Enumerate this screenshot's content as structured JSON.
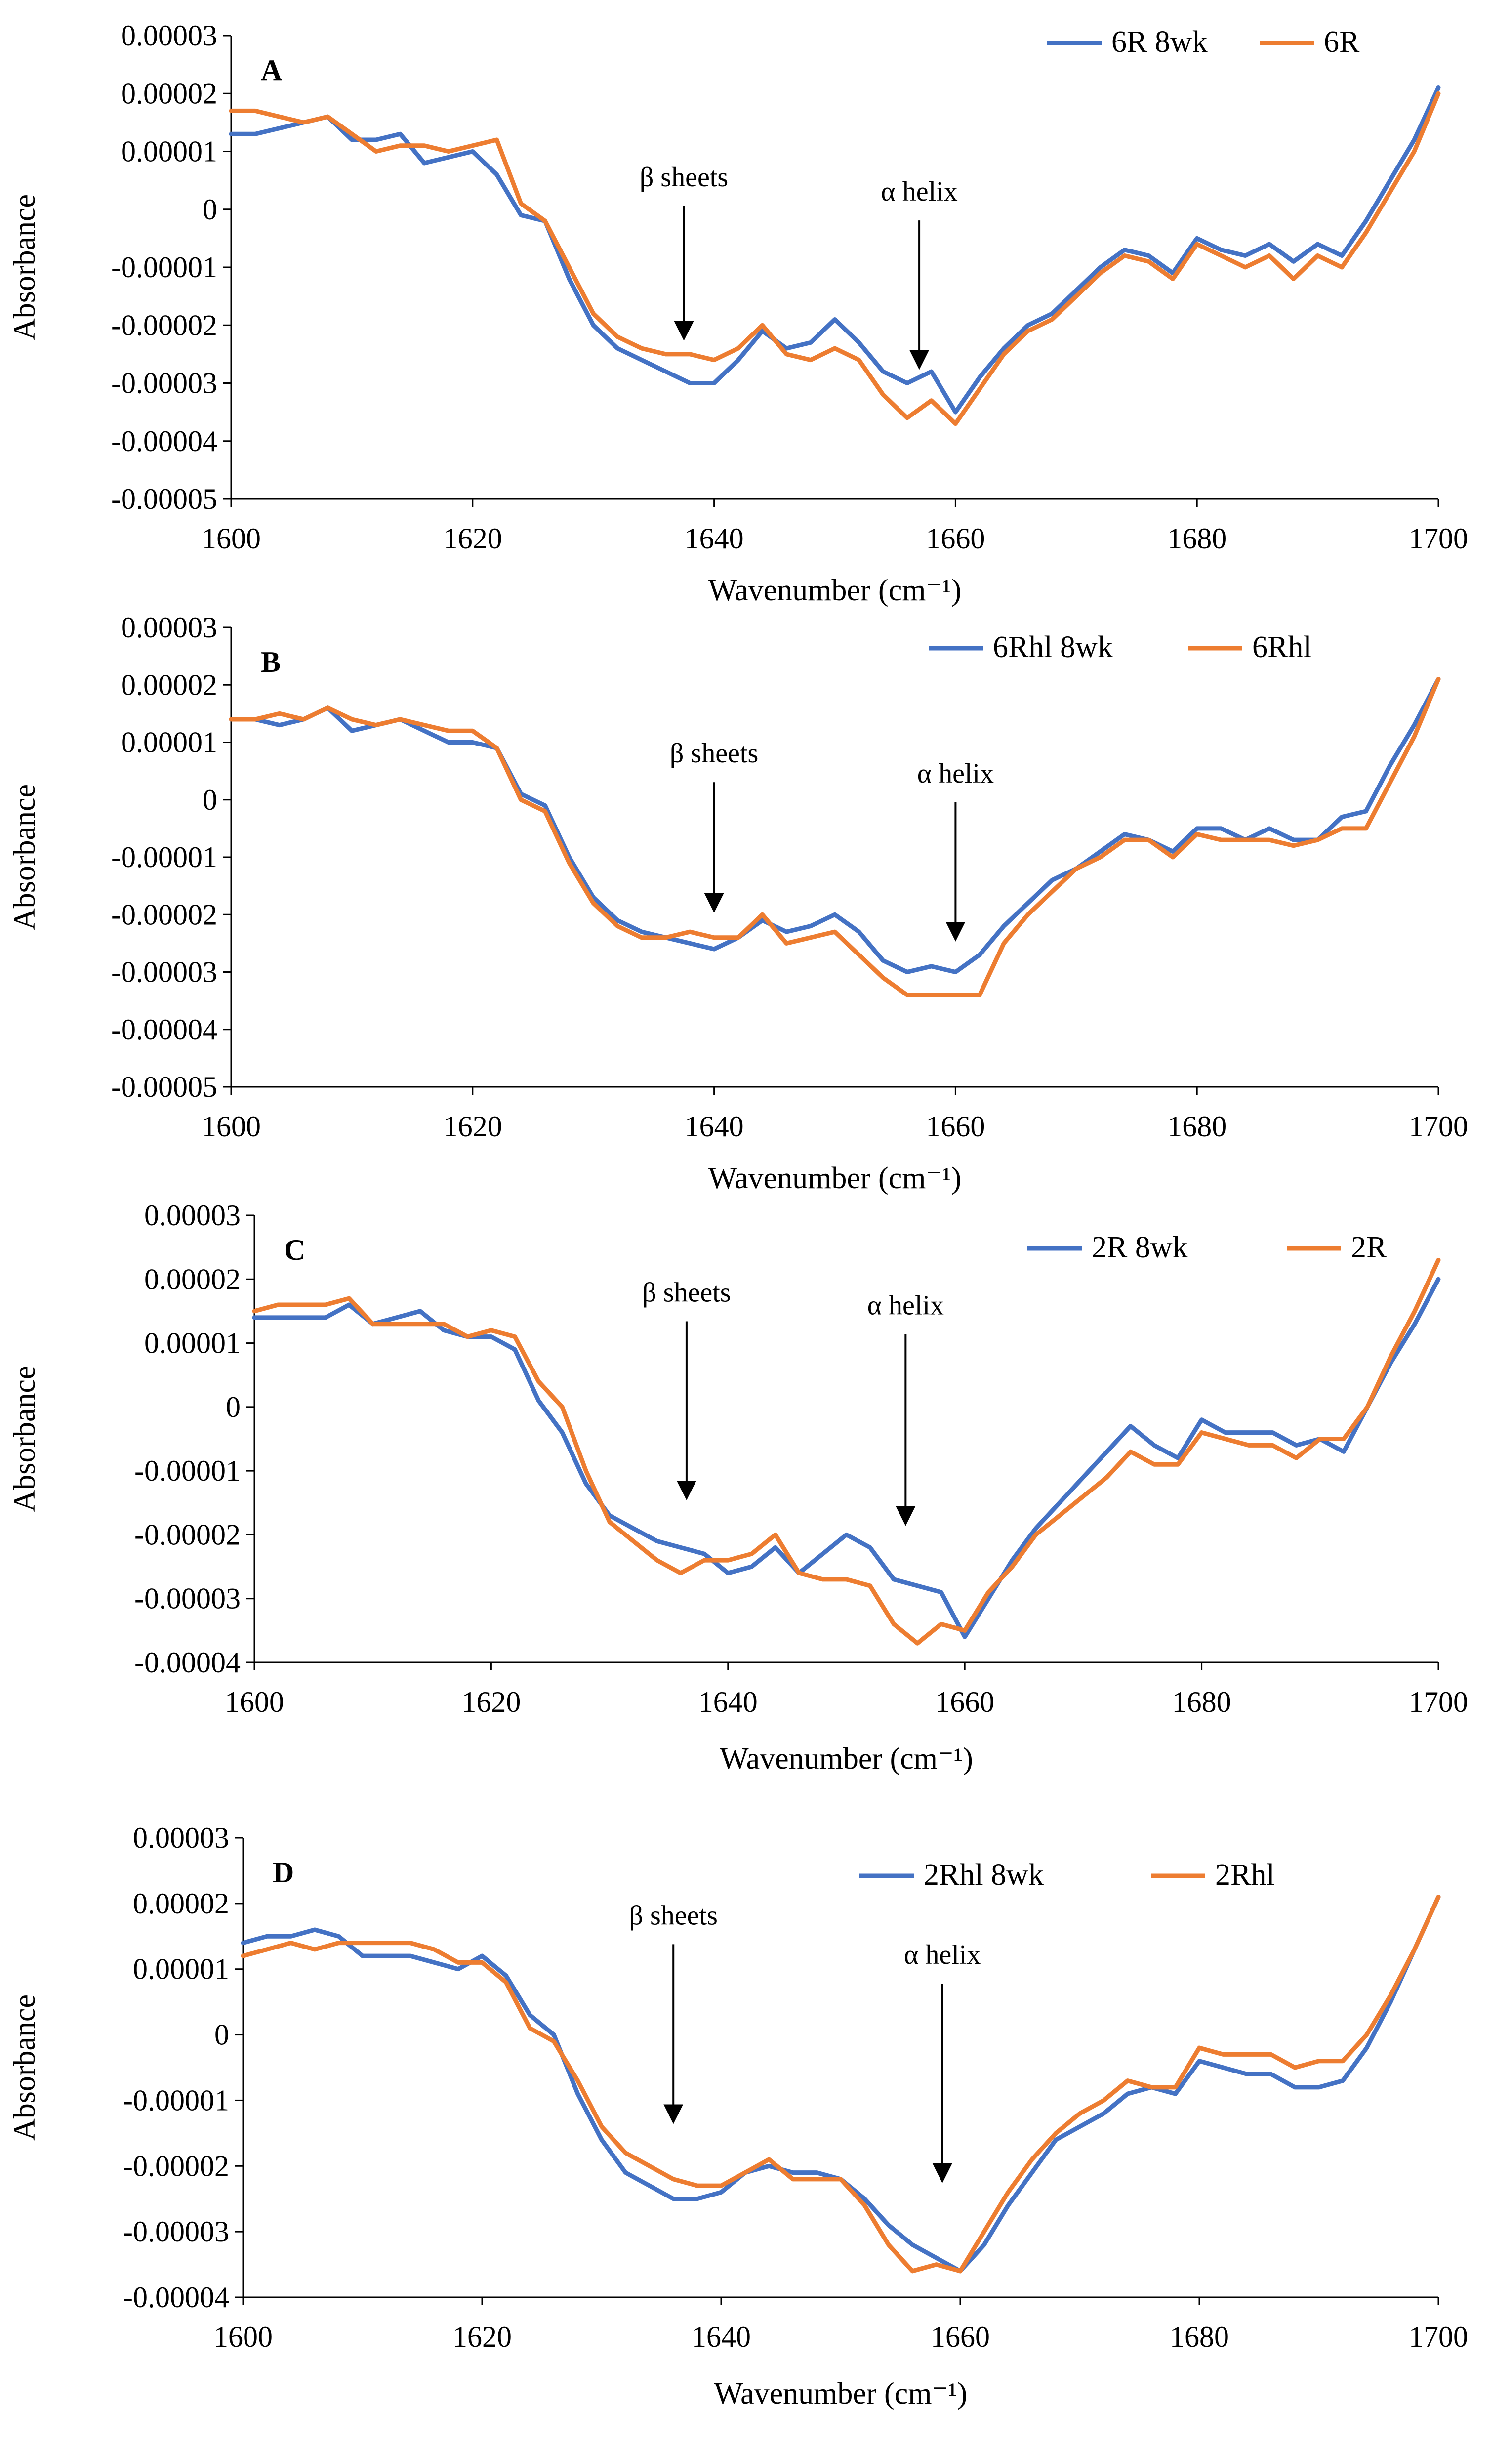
{
  "colors": {
    "series_8wk": "#4472C4",
    "series_base": "#ED7D31",
    "axis": "#000000"
  },
  "chart_data": [
    {
      "type": "line",
      "panel_label": "A",
      "xlabel": "Wavenumber (cm⁻¹)",
      "ylabel": "Absorbance",
      "xlim": [
        1600,
        1700
      ],
      "ylim": [
        -5e-05,
        3e-05
      ],
      "x_ticks": [
        "1600",
        "1620",
        "1640",
        "1660",
        "1680",
        "1700"
      ],
      "y_ticks": [
        "0.00003",
        "0.00002",
        "0.00001",
        "0",
        "-0.00001",
        "-0.00002",
        "-0.00003",
        "-0.00004",
        "-0.00005"
      ],
      "x": [
        1600,
        1602,
        1604,
        1606,
        1608,
        1610,
        1612,
        1614,
        1616,
        1618,
        1620,
        1622,
        1624,
        1626,
        1628,
        1630,
        1632,
        1634,
        1636,
        1638,
        1640,
        1642,
        1644,
        1646,
        1648,
        1650,
        1652,
        1654,
        1656,
        1658,
        1660,
        1662,
        1664,
        1666,
        1668,
        1670,
        1672,
        1674,
        1676,
        1678,
        1680,
        1682,
        1684,
        1686,
        1688,
        1690,
        1692,
        1694,
        1696,
        1698,
        1700
      ],
      "series": [
        {
          "name": "6R 8wk",
          "values": [
            1.3e-05,
            1.3e-05,
            1.4e-05,
            1.5e-05,
            1.6e-05,
            1.2e-05,
            1.2e-05,
            1.3e-05,
            8e-06,
            9e-06,
            1e-05,
            6e-06,
            -1e-06,
            -2e-06,
            -1.2e-05,
            -2e-05,
            -2.4e-05,
            -2.6e-05,
            -2.8e-05,
            -3e-05,
            -3e-05,
            -2.6e-05,
            -2.1e-05,
            -2.4e-05,
            -2.3e-05,
            -1.9e-05,
            -2.3e-05,
            -2.8e-05,
            -3e-05,
            -2.8e-05,
            -3.5e-05,
            -2.9e-05,
            -2.4e-05,
            -2e-05,
            -1.8e-05,
            -1.4e-05,
            -1e-05,
            -7e-06,
            -8e-06,
            -1.1e-05,
            -5e-06,
            -7e-06,
            -8e-06,
            -6e-06,
            -9e-06,
            -6e-06,
            -8e-06,
            -2e-06,
            5e-06,
            1.2e-05,
            2.1e-05
          ]
        },
        {
          "name": "6R",
          "values": [
            1.7e-05,
            1.7e-05,
            1.6e-05,
            1.5e-05,
            1.6e-05,
            1.3e-05,
            1e-05,
            1.1e-05,
            1.1e-05,
            1e-05,
            1.1e-05,
            1.2e-05,
            1e-06,
            -2e-06,
            -1e-05,
            -1.8e-05,
            -2.2e-05,
            -2.4e-05,
            -2.5e-05,
            -2.5e-05,
            -2.6e-05,
            -2.4e-05,
            -2e-05,
            -2.5e-05,
            -2.6e-05,
            -2.4e-05,
            -2.6e-05,
            -3.2e-05,
            -3.6e-05,
            -3.3e-05,
            -3.7e-05,
            -3.1e-05,
            -2.5e-05,
            -2.1e-05,
            -1.9e-05,
            -1.5e-05,
            -1.1e-05,
            -8e-06,
            -9e-06,
            -1.2e-05,
            -6e-06,
            -8e-06,
            -1e-05,
            -8e-06,
            -1.2e-05,
            -8e-06,
            -1e-05,
            -4e-06,
            3e-06,
            1e-05,
            2e-05
          ]
        }
      ],
      "annotations": [
        {
          "label": "β sheets",
          "x": 1637.5,
          "y_tip": -2.2e-05,
          "y_text": 4e-06
        },
        {
          "label": "α helix",
          "x": 1657,
          "y_tip": -2.7e-05,
          "y_text": 1.5e-06
        }
      ]
    },
    {
      "type": "line",
      "panel_label": "B",
      "xlabel": "Wavenumber (cm⁻¹)",
      "ylabel": "Absorbance",
      "xlim": [
        1600,
        1700
      ],
      "ylim": [
        -5e-05,
        3e-05
      ],
      "x_ticks": [
        "1600",
        "1620",
        "1640",
        "1660",
        "1680",
        "1700"
      ],
      "y_ticks": [
        "0.00003",
        "0.00002",
        "0.00001",
        "0",
        "-0.00001",
        "-0.00002",
        "-0.00003",
        "-0.00004",
        "-0.00005"
      ],
      "x": [
        1600,
        1602,
        1604,
        1606,
        1608,
        1610,
        1612,
        1614,
        1616,
        1618,
        1620,
        1622,
        1624,
        1626,
        1628,
        1630,
        1632,
        1634,
        1636,
        1638,
        1640,
        1642,
        1644,
        1646,
        1648,
        1650,
        1652,
        1654,
        1656,
        1658,
        1660,
        1662,
        1664,
        1666,
        1668,
        1670,
        1672,
        1674,
        1676,
        1678,
        1680,
        1682,
        1684,
        1686,
        1688,
        1690,
        1692,
        1694,
        1696,
        1698,
        1700
      ],
      "series": [
        {
          "name": "6Rhl 8wk",
          "values": [
            1.4e-05,
            1.4e-05,
            1.3e-05,
            1.4e-05,
            1.6e-05,
            1.2e-05,
            1.3e-05,
            1.4e-05,
            1.2e-05,
            1e-05,
            1e-05,
            9e-06,
            1e-06,
            -1e-06,
            -1e-05,
            -1.7e-05,
            -2.1e-05,
            -2.3e-05,
            -2.4e-05,
            -2.5e-05,
            -2.6e-05,
            -2.4e-05,
            -2.1e-05,
            -2.3e-05,
            -2.2e-05,
            -2e-05,
            -2.3e-05,
            -2.8e-05,
            -3e-05,
            -2.9e-05,
            -3e-05,
            -2.7e-05,
            -2.2e-05,
            -1.8e-05,
            -1.4e-05,
            -1.2e-05,
            -9e-06,
            -6e-06,
            -7e-06,
            -9e-06,
            -5e-06,
            -5e-06,
            -7e-06,
            -5e-06,
            -7e-06,
            -7e-06,
            -3e-06,
            -2e-06,
            6e-06,
            1.3e-05,
            2.1e-05
          ]
        },
        {
          "name": "6Rhl",
          "values": [
            1.4e-05,
            1.4e-05,
            1.5e-05,
            1.4e-05,
            1.6e-05,
            1.4e-05,
            1.3e-05,
            1.4e-05,
            1.3e-05,
            1.2e-05,
            1.2e-05,
            9e-06,
            0.0,
            -2e-06,
            -1.1e-05,
            -1.8e-05,
            -2.2e-05,
            -2.4e-05,
            -2.4e-05,
            -2.3e-05,
            -2.4e-05,
            -2.4e-05,
            -2e-05,
            -2.5e-05,
            -2.4e-05,
            -2.3e-05,
            -2.7e-05,
            -3.1e-05,
            -3.4e-05,
            -3.4e-05,
            -3.4e-05,
            -3.4e-05,
            -2.5e-05,
            -2e-05,
            -1.6e-05,
            -1.2e-05,
            -1e-05,
            -7e-06,
            -7e-06,
            -1e-05,
            -6e-06,
            -7e-06,
            -7e-06,
            -7e-06,
            -8e-06,
            -7e-06,
            -5e-06,
            -5e-06,
            3e-06,
            1.1e-05,
            2.1e-05
          ]
        }
      ],
      "annotations": [
        {
          "label": "β sheets",
          "x": 1640,
          "y_tip": -1.9e-05,
          "y_text": 6.5e-06
        },
        {
          "label": "α helix",
          "x": 1660,
          "y_tip": -2.4e-05,
          "y_text": 3e-06
        }
      ]
    },
    {
      "type": "line",
      "panel_label": "C",
      "xlabel": "Wavenumber (cm⁻¹)",
      "ylabel": "Absorbance",
      "xlim": [
        1600,
        1700
      ],
      "ylim": [
        -4e-05,
        3e-05
      ],
      "x_ticks": [
        "1600",
        "1620",
        "1640",
        "1660",
        "1680",
        "1700"
      ],
      "y_ticks": [
        "0.00003",
        "0.00002",
        "0.00001",
        "0",
        "-0.00001",
        "-0.00002",
        "-0.00003",
        "-0.00004"
      ],
      "x": [
        1600,
        1602,
        1604,
        1606,
        1608,
        1610,
        1612,
        1614,
        1616,
        1618,
        1620,
        1622,
        1624,
        1626,
        1628,
        1630,
        1632,
        1634,
        1636,
        1638,
        1640,
        1642,
        1644,
        1646,
        1648,
        1650,
        1652,
        1654,
        1656,
        1658,
        1660,
        1662,
        1664,
        1666,
        1668,
        1670,
        1672,
        1674,
        1676,
        1678,
        1680,
        1682,
        1684,
        1686,
        1688,
        1690,
        1692,
        1694,
        1696,
        1698,
        1700
      ],
      "series": [
        {
          "name": "2R 8wk",
          "values": [
            1.4e-05,
            1.4e-05,
            1.4e-05,
            1.4e-05,
            1.6e-05,
            1.3e-05,
            1.4e-05,
            1.5e-05,
            1.2e-05,
            1.1e-05,
            1.1e-05,
            9e-06,
            1e-06,
            -4e-06,
            -1.2e-05,
            -1.7e-05,
            -1.9e-05,
            -2.1e-05,
            -2.2e-05,
            -2.3e-05,
            -2.6e-05,
            -2.5e-05,
            -2.2e-05,
            -2.6e-05,
            -2.3e-05,
            -2e-05,
            -2.2e-05,
            -2.7e-05,
            -2.8e-05,
            -2.9e-05,
            -3.6e-05,
            -3e-05,
            -2.4e-05,
            -1.9e-05,
            -1.5e-05,
            -1.1e-05,
            -7e-06,
            -3e-06,
            -6e-06,
            -8e-06,
            -2e-06,
            -4e-06,
            -4e-06,
            -4e-06,
            -6e-06,
            -5e-06,
            -7e-06,
            0.0,
            7e-06,
            1.3e-05,
            2e-05
          ]
        },
        {
          "name": "2R",
          "values": [
            1.5e-05,
            1.6e-05,
            1.6e-05,
            1.6e-05,
            1.7e-05,
            1.3e-05,
            1.3e-05,
            1.3e-05,
            1.3e-05,
            1.1e-05,
            1.2e-05,
            1.1e-05,
            4e-06,
            0.0,
            -1e-05,
            -1.8e-05,
            -2.1e-05,
            -2.4e-05,
            -2.6e-05,
            -2.4e-05,
            -2.4e-05,
            -2.3e-05,
            -2e-05,
            -2.6e-05,
            -2.7e-05,
            -2.7e-05,
            -2.8e-05,
            -3.4e-05,
            -3.7e-05,
            -3.4e-05,
            -3.5e-05,
            -2.9e-05,
            -2.5e-05,
            -2e-05,
            -1.7e-05,
            -1.4e-05,
            -1.1e-05,
            -7e-06,
            -9e-06,
            -9e-06,
            -4e-06,
            -5e-06,
            -6e-06,
            -6e-06,
            -8e-06,
            -5e-06,
            -5e-06,
            0.0,
            8e-06,
            1.5e-05,
            2.3e-05
          ]
        }
      ],
      "annotations": [
        {
          "label": "β sheets",
          "x": 1636.5,
          "y_tip": -1.4e-05,
          "y_text": 1.65e-05
        },
        {
          "label": "α helix",
          "x": 1655,
          "y_tip": -1.8e-05,
          "y_text": 1.45e-05
        }
      ]
    },
    {
      "type": "line",
      "panel_label": "D",
      "xlabel": "Wavenumber (cm⁻¹)",
      "ylabel": "Absorbance",
      "xlim": [
        1600,
        1700
      ],
      "ylim": [
        -4e-05,
        3e-05
      ],
      "x_ticks": [
        "1600",
        "1620",
        "1640",
        "1660",
        "1680",
        "1700"
      ],
      "y_ticks": [
        "0.00003",
        "0.00002",
        "0.00001",
        "0",
        "-0.00001",
        "-0.00002",
        "-0.00003",
        "-0.00004"
      ],
      "x": [
        1600,
        1602,
        1604,
        1606,
        1608,
        1610,
        1612,
        1614,
        1616,
        1618,
        1620,
        1622,
        1624,
        1626,
        1628,
        1630,
        1632,
        1634,
        1636,
        1638,
        1640,
        1642,
        1644,
        1646,
        1648,
        1650,
        1652,
        1654,
        1656,
        1658,
        1660,
        1662,
        1664,
        1666,
        1668,
        1670,
        1672,
        1674,
        1676,
        1678,
        1680,
        1682,
        1684,
        1686,
        1688,
        1690,
        1692,
        1694,
        1696,
        1698,
        1700
      ],
      "series": [
        {
          "name": "2Rhl 8wk",
          "values": [
            1.4e-05,
            1.5e-05,
            1.5e-05,
            1.6e-05,
            1.5e-05,
            1.2e-05,
            1.2e-05,
            1.2e-05,
            1.1e-05,
            1e-05,
            1.2e-05,
            9e-06,
            3e-06,
            0.0,
            -9e-06,
            -1.6e-05,
            -2.1e-05,
            -2.3e-05,
            -2.5e-05,
            -2.5e-05,
            -2.4e-05,
            -2.1e-05,
            -2e-05,
            -2.1e-05,
            -2.1e-05,
            -2.2e-05,
            -2.5e-05,
            -2.9e-05,
            -3.2e-05,
            -3.4e-05,
            -3.6e-05,
            -3.2e-05,
            -2.6e-05,
            -2.1e-05,
            -1.6e-05,
            -1.4e-05,
            -1.2e-05,
            -9e-06,
            -8e-06,
            -9e-06,
            -4e-06,
            -5e-06,
            -6e-06,
            -6e-06,
            -8e-06,
            -8e-06,
            -7e-06,
            -2e-06,
            5e-06,
            1.3e-05,
            2.1e-05
          ]
        },
        {
          "name": "2Rhl",
          "values": [
            1.2e-05,
            1.3e-05,
            1.4e-05,
            1.3e-05,
            1.4e-05,
            1.4e-05,
            1.4e-05,
            1.4e-05,
            1.3e-05,
            1.1e-05,
            1.1e-05,
            8e-06,
            1e-06,
            -1e-06,
            -7e-06,
            -1.4e-05,
            -1.8e-05,
            -2e-05,
            -2.2e-05,
            -2.3e-05,
            -2.3e-05,
            -2.1e-05,
            -1.9e-05,
            -2.2e-05,
            -2.2e-05,
            -2.2e-05,
            -2.6e-05,
            -3.2e-05,
            -3.6e-05,
            -3.5e-05,
            -3.6e-05,
            -3e-05,
            -2.4e-05,
            -1.9e-05,
            -1.5e-05,
            -1.2e-05,
            -1e-05,
            -7e-06,
            -8e-06,
            -8e-06,
            -2e-06,
            -3e-06,
            -3e-06,
            -3e-06,
            -5e-06,
            -4e-06,
            -4e-06,
            0.0,
            6e-06,
            1.3e-05,
            2.1e-05
          ]
        }
      ],
      "annotations": [
        {
          "label": "β sheets",
          "x": 1636,
          "y_tip": -1.3e-05,
          "y_text": 1.68e-05
        },
        {
          "label": "α helix",
          "x": 1658.5,
          "y_tip": -2.2e-05,
          "y_text": 1.08e-05
        }
      ]
    }
  ]
}
